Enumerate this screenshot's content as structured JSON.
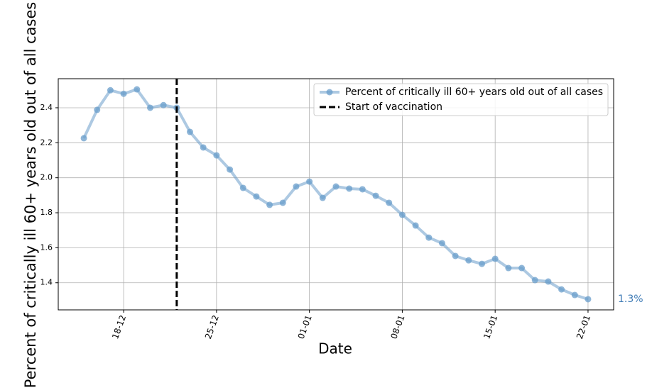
{
  "chart_data": {
    "type": "line",
    "x_label": "Date",
    "y_label": "Percent of critically ill 60+ years old out of all cases",
    "x": [
      "15-12",
      "16-12",
      "17-12",
      "18-12",
      "19-12",
      "20-12",
      "21-12",
      "22-12",
      "23-12",
      "24-12",
      "25-12",
      "26-12",
      "27-12",
      "28-12",
      "29-12",
      "30-12",
      "31-12",
      "01-01",
      "02-01",
      "03-01",
      "04-01",
      "05-01",
      "06-01",
      "07-01",
      "08-01",
      "09-01",
      "10-01",
      "11-01",
      "12-01",
      "13-01",
      "14-01",
      "15-01",
      "16-01",
      "17-01",
      "18-01",
      "19-01",
      "20-01",
      "21-01",
      "22-01"
    ],
    "series": [
      {
        "name": "Percent of critically ill 60+ years old out of all cases",
        "color": "#6a9dcb",
        "values": [
          2.226,
          2.388,
          2.5,
          2.48,
          2.505,
          2.4,
          2.415,
          2.4,
          2.262,
          2.173,
          2.128,
          2.047,
          1.942,
          1.893,
          1.845,
          1.857,
          1.95,
          1.978,
          1.885,
          1.95,
          1.938,
          1.934,
          1.897,
          1.857,
          1.788,
          1.727,
          1.658,
          1.626,
          1.553,
          1.528,
          1.508,
          1.537,
          1.484,
          1.484,
          1.415,
          1.407,
          1.362,
          1.33,
          1.306
        ]
      }
    ],
    "vline": {
      "name": "Start of vaccination",
      "x": "22-12",
      "color": "#000000"
    },
    "annotation": "1.3%",
    "ylim": [
      1.245,
      2.566
    ],
    "yticks": [
      {
        "value": 1.4,
        "label": "1.4"
      },
      {
        "value": 1.6,
        "label": "1.6"
      },
      {
        "value": 1.8,
        "label": "1.8"
      },
      {
        "value": 2.0,
        "label": "2.0"
      },
      {
        "value": 2.2,
        "label": "2.2"
      },
      {
        "value": 2.4,
        "label": "2.4"
      }
    ],
    "xticks": [
      "18-12",
      "25-12",
      "01-01",
      "08-01",
      "15-01",
      "22-01"
    ],
    "grid": true,
    "legend": "upper right"
  }
}
